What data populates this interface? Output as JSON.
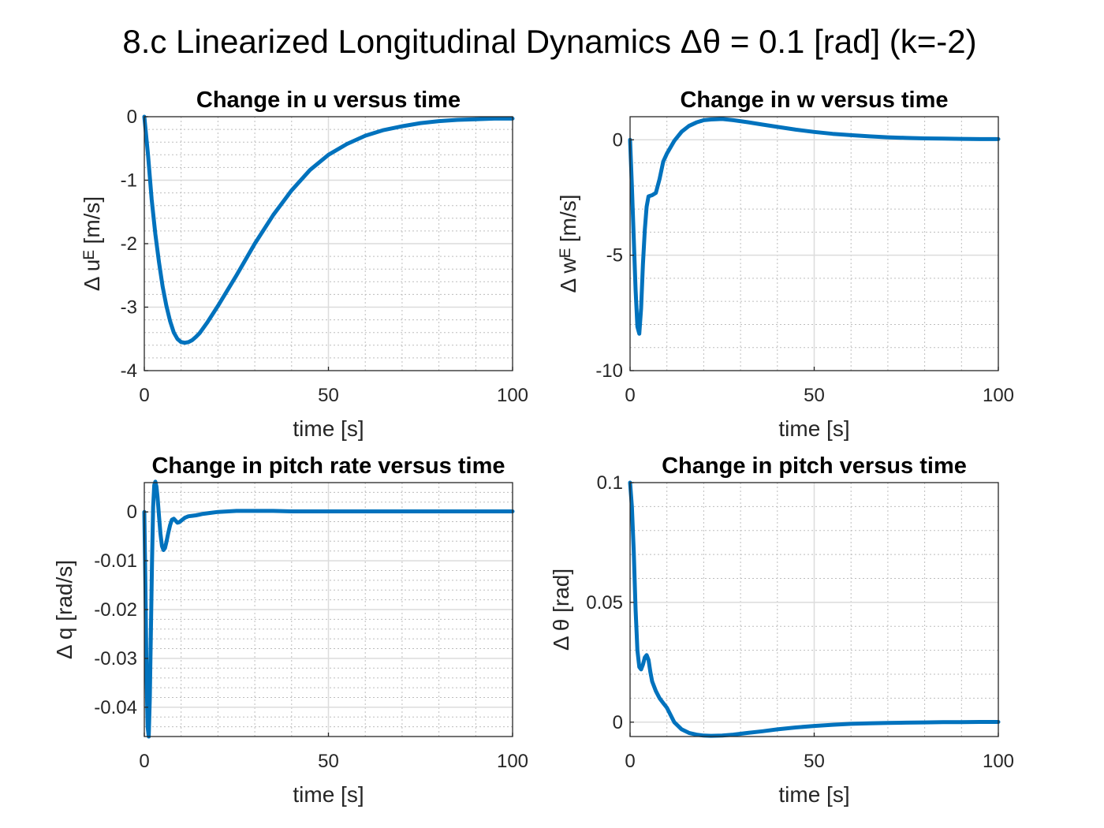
{
  "figure_title": "8.c Linearized Longitudinal Dynamics Δθ = 0.1 [rad] (k=-2)",
  "chart_data": [
    {
      "type": "line",
      "title": "Change in u versus time",
      "xlabel": "time [s]",
      "ylabel": "Δ uᴱ [m/s]",
      "xlim": [
        0,
        100
      ],
      "ylim": [
        -4,
        0
      ],
      "xticks": [
        0,
        50,
        100
      ],
      "yticks": [
        -4,
        -3,
        -2,
        -1,
        0
      ],
      "grid": "on",
      "color": "#0072bd",
      "series": [
        {
          "x": [
            0,
            1,
            2,
            3,
            4,
            5,
            6,
            7,
            8,
            9,
            10,
            11,
            12,
            13,
            14,
            15,
            17,
            20,
            25,
            30,
            35,
            40,
            45,
            50,
            55,
            60,
            65,
            70,
            75,
            80,
            85,
            90,
            95,
            100
          ],
          "y": [
            0,
            -0.6,
            -1.3,
            -1.85,
            -2.3,
            -2.68,
            -2.98,
            -3.22,
            -3.4,
            -3.5,
            -3.55,
            -3.56,
            -3.55,
            -3.52,
            -3.47,
            -3.41,
            -3.25,
            -2.98,
            -2.5,
            -2.0,
            -1.55,
            -1.16,
            -0.84,
            -0.6,
            -0.43,
            -0.3,
            -0.21,
            -0.15,
            -0.1,
            -0.07,
            -0.05,
            -0.04,
            -0.03,
            -0.03
          ]
        }
      ]
    },
    {
      "type": "line",
      "title": "Change in w versus time",
      "xlabel": "time [s]",
      "ylabel": "Δ wᴱ [m/s]",
      "xlim": [
        0,
        100
      ],
      "ylim": [
        -10,
        1
      ],
      "xticks": [
        0,
        50,
        100
      ],
      "yticks": [
        -10,
        -5,
        0
      ],
      "grid": "on",
      "color": "#0072bd",
      "series": [
        {
          "x": [
            0,
            0.5,
            1,
            1.5,
            2,
            2.5,
            3,
            3.5,
            4,
            4.5,
            5,
            6,
            7,
            8,
            9,
            10,
            12,
            14,
            16,
            18,
            20,
            22,
            25,
            28,
            32,
            36,
            40,
            45,
            50,
            55,
            60,
            65,
            70,
            75,
            80,
            85,
            90,
            95,
            100
          ],
          "y": [
            0,
            -2.0,
            -4.3,
            -6.5,
            -8.1,
            -8.4,
            -7.3,
            -5.4,
            -3.9,
            -2.9,
            -2.45,
            -2.4,
            -2.3,
            -1.7,
            -0.95,
            -0.6,
            -0.05,
            0.35,
            0.6,
            0.75,
            0.85,
            0.88,
            0.9,
            0.85,
            0.76,
            0.66,
            0.56,
            0.44,
            0.34,
            0.26,
            0.2,
            0.15,
            0.11,
            0.08,
            0.06,
            0.05,
            0.04,
            0.03,
            0.03
          ]
        }
      ]
    },
    {
      "type": "line",
      "title": "Change in pitch rate versus time",
      "xlabel": "time [s]",
      "ylabel": "Δ q [rad/s]",
      "xlim": [
        0,
        100
      ],
      "ylim": [
        -0.046,
        0.006
      ],
      "xticks": [
        0,
        50,
        100
      ],
      "yticks": [
        -0.04,
        -0.03,
        -0.02,
        -0.01,
        0
      ],
      "grid": "on",
      "color": "#0072bd",
      "series": [
        {
          "x": [
            0,
            0.3,
            0.6,
            0.9,
            1.2,
            1.5,
            1.8,
            2.1,
            2.4,
            2.7,
            3,
            3.3,
            3.6,
            4,
            4.4,
            4.8,
            5.2,
            5.6,
            6,
            6.5,
            7,
            7.5,
            8,
            8.5,
            9,
            9.5,
            10,
            11,
            12,
            13,
            14,
            16,
            18,
            20,
            25,
            30,
            35,
            40,
            50,
            60,
            70,
            80,
            90,
            100
          ],
          "y": [
            0,
            -0.015,
            -0.033,
            -0.044,
            -0.046,
            -0.038,
            -0.024,
            -0.01,
            0.001,
            0.0055,
            0.0062,
            0.0052,
            0.003,
            -0.001,
            -0.0045,
            -0.007,
            -0.0078,
            -0.0074,
            -0.0062,
            -0.0043,
            -0.0027,
            -0.0016,
            -0.0014,
            -0.0018,
            -0.0022,
            -0.0021,
            -0.0018,
            -0.0012,
            -0.0009,
            -0.0008,
            -0.0007,
            -0.0004,
            -0.0002,
            0,
            0.0002,
            0.0002,
            0.0002,
            0.0001,
            0.0001,
            0.0001,
            0.0001,
            0.0001,
            0.0001,
            0.0001
          ]
        }
      ]
    },
    {
      "type": "line",
      "title": "Change in pitch versus time",
      "xlabel": "time [s]",
      "ylabel": "Δ θ [rad]",
      "xlim": [
        0,
        100
      ],
      "ylim": [
        -0.006,
        0.1
      ],
      "xticks": [
        0,
        50,
        100
      ],
      "yticks": [
        0,
        0.05,
        0.1
      ],
      "grid": "on",
      "color": "#0072bd",
      "series": [
        {
          "x": [
            0,
            0.5,
            1,
            1.5,
            2,
            2.5,
            3,
            3.5,
            4,
            4.5,
            5,
            5.5,
            6,
            7,
            8,
            9,
            10,
            12,
            14,
            16,
            18,
            20,
            22,
            25,
            28,
            32,
            36,
            40,
            45,
            50,
            55,
            60,
            65,
            70,
            75,
            80,
            85,
            90,
            95,
            100
          ],
          "y": [
            0.1,
            0.09,
            0.071,
            0.047,
            0.03,
            0.023,
            0.022,
            0.024,
            0.027,
            0.028,
            0.026,
            0.021,
            0.017,
            0.013,
            0.01,
            0.008,
            0.006,
            0.0,
            -0.003,
            -0.0045,
            -0.0052,
            -0.0056,
            -0.0057,
            -0.0056,
            -0.0052,
            -0.0045,
            -0.0038,
            -0.003,
            -0.0022,
            -0.0016,
            -0.0011,
            -0.0007,
            -0.0005,
            -0.0003,
            -0.0002,
            -0.0001,
            0,
            0,
            0.0001,
            0.0001
          ]
        }
      ]
    }
  ]
}
